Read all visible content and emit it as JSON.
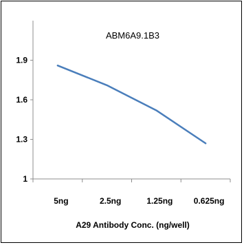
{
  "chart_data": {
    "type": "line",
    "title": "ABM6A9.1B3",
    "xlabel": "A29 Antibody Conc. (ng/well)",
    "ylabel": "",
    "categories": [
      "5ng",
      "2.5ng",
      "1.25ng",
      "0.625ng"
    ],
    "series": [
      {
        "values": [
          1.86,
          1.71,
          1.52,
          1.27
        ],
        "color": "#4a7ebb"
      }
    ],
    "ylim": [
      1,
      2.2
    ],
    "yticks": [
      1,
      1.3,
      1.6,
      1.9
    ],
    "ytick_labels": [
      "1",
      "1.3",
      "1.6",
      "1.9"
    ],
    "grid": false,
    "legend": "none"
  }
}
